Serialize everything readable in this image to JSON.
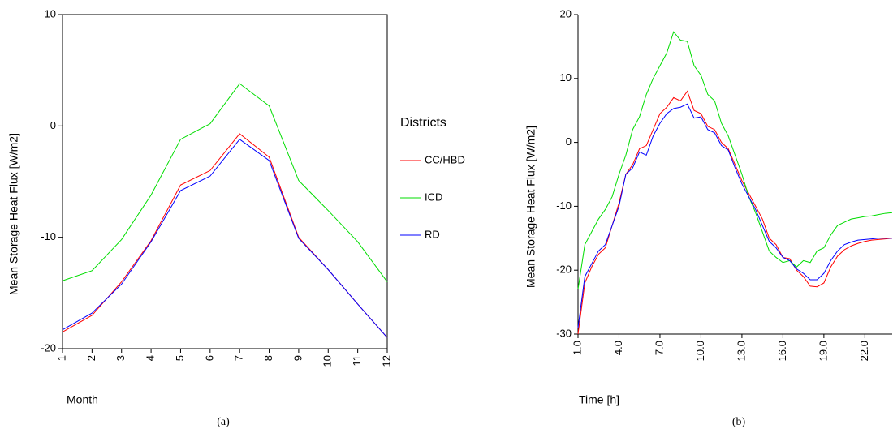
{
  "chart_data": [
    {
      "type": "line",
      "caption": "(a)",
      "xlabel": "Month",
      "ylabel": "Mean Storage Heat Flux [W/m2]",
      "legend_title": "Districts",
      "legend": "right",
      "box": true,
      "x": [
        1,
        2,
        3,
        4,
        5,
        6,
        7,
        8,
        9,
        10,
        11,
        12
      ],
      "xlim": [
        1,
        12
      ],
      "xticks": [
        1,
        2,
        3,
        4,
        5,
        6,
        7,
        8,
        9,
        10,
        11,
        12
      ],
      "ylim": [
        -20,
        10
      ],
      "yticks": [
        -20,
        -10,
        0,
        10
      ],
      "series": [
        {
          "name": "CC/HBD",
          "color": "#ff0000",
          "values": [
            -18.5,
            -17,
            -14,
            -10.3,
            -5.3,
            -4,
            -0.7,
            -2.8,
            -10,
            -12.9,
            -16,
            -19
          ]
        },
        {
          "name": "ICD",
          "color": "#00dd00",
          "values": [
            -13.9,
            -13,
            -10.2,
            -6.2,
            -1.2,
            0.2,
            3.8,
            1.8,
            -4.9,
            -7.6,
            -10.4,
            -14
          ]
        },
        {
          "name": "RD",
          "color": "#0000ff",
          "values": [
            -18.3,
            -16.8,
            -14.2,
            -10.4,
            -5.8,
            -4.5,
            -1.2,
            -3.1,
            -10.1,
            -12.9,
            -16,
            -19
          ]
        }
      ]
    },
    {
      "type": "line",
      "caption": "(b)",
      "xlabel": "Time [h]",
      "ylabel": "Mean Storage Heat Flux [W/m2]",
      "box": false,
      "x": [
        1,
        1.5,
        2,
        2.5,
        3,
        3.5,
        4,
        4.5,
        5,
        5.5,
        6,
        6.5,
        7,
        7.5,
        8,
        8.5,
        9,
        9.5,
        10,
        10.5,
        11,
        11.5,
        12,
        12.5,
        13,
        13.5,
        14,
        14.5,
        15,
        15.5,
        16,
        16.5,
        17,
        17.5,
        18,
        18.5,
        19,
        19.5,
        20,
        20.5,
        21,
        21.5,
        22,
        22.5,
        23,
        23.5,
        24
      ],
      "xlim": [
        1,
        24
      ],
      "xticks": [
        {
          "value": 1,
          "label": "1.0"
        },
        {
          "value": 4,
          "label": "4.0"
        },
        {
          "value": 7,
          "label": "7.0"
        },
        {
          "value": 10,
          "label": "10.0"
        },
        {
          "value": 13,
          "label": "13.0"
        },
        {
          "value": 16,
          "label": "16.0"
        },
        {
          "value": 19,
          "label": "19.0"
        },
        {
          "value": 22,
          "label": "22.0"
        }
      ],
      "ylim": [
        -30,
        20
      ],
      "yticks": [
        -30,
        -20,
        -10,
        0,
        10,
        20
      ],
      "series": [
        {
          "color": "#ff0000",
          "values": [
            -30,
            -22,
            -19.5,
            -17.5,
            -16.5,
            -13,
            -9.5,
            -5,
            -3.5,
            -1,
            -0.5,
            2,
            4.5,
            5.5,
            7,
            6.5,
            8,
            5,
            4.5,
            2.5,
            2,
            0,
            -1,
            -3.5,
            -6,
            -8,
            -10,
            -12,
            -15,
            -16,
            -18,
            -18.2,
            -20,
            -21,
            -22.5,
            -22.6,
            -22,
            -19.5,
            -17.8,
            -16.8,
            -16.2,
            -15.8,
            -15.5,
            -15.3,
            -15.2,
            -15.1,
            -15
          ]
        },
        {
          "color": "#00dd00",
          "values": [
            -23,
            -16,
            -14,
            -12,
            -10.5,
            -8.5,
            -5,
            -2,
            2,
            4,
            7.5,
            10,
            12,
            14,
            17.3,
            16,
            15.8,
            12,
            10.5,
            7.5,
            6.5,
            3,
            1,
            -2,
            -5,
            -8.5,
            -11,
            -14,
            -17,
            -18,
            -18.8,
            -18.5,
            -19.5,
            -18.5,
            -18.8,
            -17,
            -16.5,
            -14.5,
            -13,
            -12.5,
            -12,
            -11.8,
            -11.6,
            -11.5,
            -11.3,
            -11.1,
            -11
          ]
        },
        {
          "color": "#0000ff",
          "values": [
            -29,
            -21,
            -19,
            -17,
            -16,
            -13,
            -10,
            -5,
            -4,
            -1.5,
            -2,
            1,
            3,
            4.5,
            5.3,
            5.5,
            6,
            3.8,
            4,
            2,
            1.5,
            -0.5,
            -1.2,
            -4,
            -6.5,
            -8.5,
            -10.5,
            -13,
            -15.5,
            -16.5,
            -18,
            -18.5,
            -19.8,
            -20.5,
            -21.5,
            -21.5,
            -20.5,
            -18.5,
            -17,
            -16,
            -15.6,
            -15.3,
            -15.2,
            -15.1,
            -15,
            -15,
            -15
          ]
        }
      ]
    }
  ]
}
